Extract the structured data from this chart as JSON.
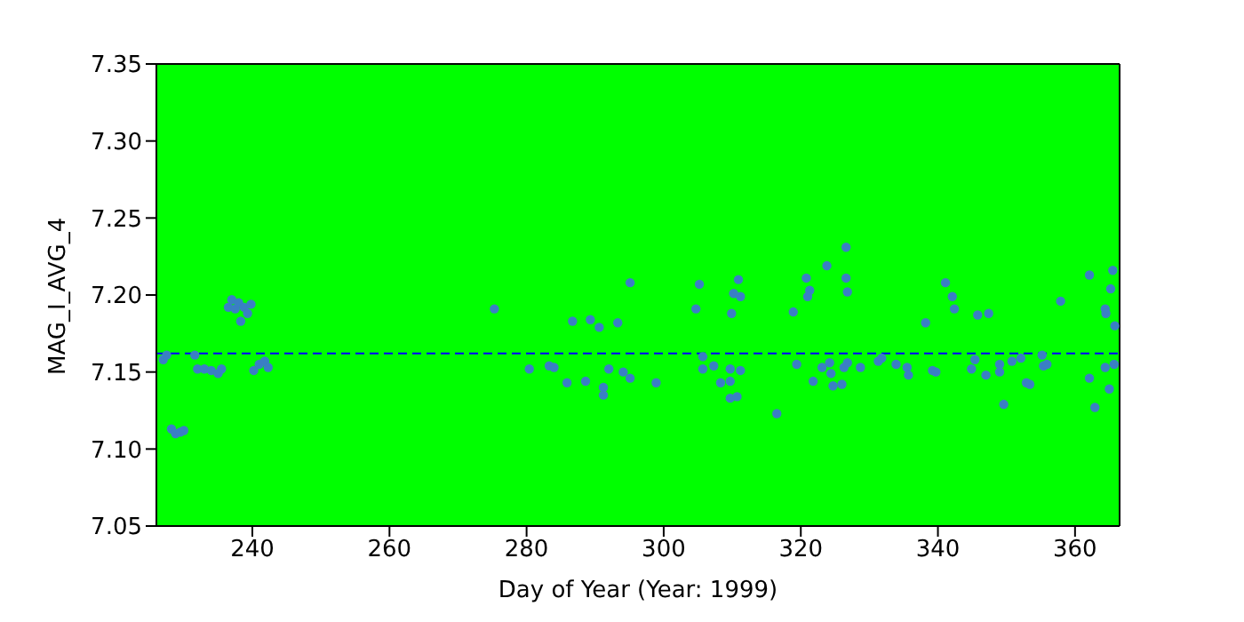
{
  "chart_data": {
    "type": "scatter",
    "xlabel": "Day of Year (Year: 1999)",
    "ylabel": "MAG_I_AVG_4",
    "xlim": [
      226,
      366.5
    ],
    "xticks": [
      240,
      260,
      280,
      300,
      320,
      340,
      360
    ],
    "ylim": [
      7.05,
      7.35
    ],
    "yticks": [
      7.05,
      {
        "value": 7.1,
        "label": "7.10"
      },
      7.15,
      {
        "value": 7.2,
        "label": "7.20"
      },
      7.25,
      {
        "value": 7.3,
        "label": "7.30"
      },
      7.35
    ],
    "legend": false,
    "marker": "circle",
    "ref_lines": [
      {
        "axis": "y",
        "value": 7.162,
        "color": "#0000ff",
        "line_style": "dashed"
      }
    ],
    "series": [
      {
        "color": "#3a7fc4",
        "x": [
          227,
          227.5,
          228.2,
          228.8,
          229.5,
          230,
          231.6,
          232,
          233,
          234,
          235,
          235.5,
          236.5,
          237,
          237.5,
          238,
          238.3,
          238.8,
          239.3,
          239.8,
          240.2,
          241,
          241.8,
          242.3,
          275.3,
          286.7,
          289.3,
          290.6,
          293.3,
          295.1,
          280.4,
          283.3,
          284,
          285.9,
          288.6,
          292,
          294.1,
          295.1,
          291.2,
          291.2,
          298.9,
          305.2,
          304.7,
          310.9,
          310.2,
          311.2,
          309.9,
          320.8,
          321.3,
          321,
          323.8,
          326.6,
          326.6,
          326.8,
          318.9,
          305.7,
          305.7,
          307.3,
          308.3,
          309.7,
          309.7,
          311.2,
          309.7,
          310.7,
          316.5,
          319.4,
          321.8,
          323.1,
          324.2,
          324.4,
          324.7,
          326,
          326.3,
          326.8,
          328.7,
          331.3,
          331.8,
          333.9,
          341.1,
          342.1,
          342.4,
          338.2,
          345.8,
          347.4,
          335.5,
          335.7,
          339.2,
          339.7,
          344.9,
          345.4,
          347,
          349,
          349,
          349.6,
          350.8,
          352.1,
          352.9,
          353.4,
          355.2,
          355.4,
          355.9,
          357.9,
          362.1,
          364.4,
          364.5,
          365.2,
          365.5,
          365.8,
          362.1,
          362.9,
          364.4,
          365,
          365.7
        ],
        "values": [
          7.158,
          7.161,
          7.113,
          7.11,
          7.111,
          7.112,
          7.161,
          7.152,
          7.152,
          7.151,
          7.149,
          7.152,
          7.192,
          7.197,
          7.191,
          7.195,
          7.183,
          7.192,
          7.188,
          7.194,
          7.151,
          7.155,
          7.157,
          7.153,
          7.191,
          7.183,
          7.184,
          7.179,
          7.182,
          7.208,
          7.152,
          7.154,
          7.153,
          7.143,
          7.144,
          7.152,
          7.15,
          7.146,
          7.14,
          7.135,
          7.143,
          7.207,
          7.191,
          7.21,
          7.201,
          7.199,
          7.188,
          7.211,
          7.203,
          7.199,
          7.219,
          7.231,
          7.211,
          7.202,
          7.189,
          7.16,
          7.152,
          7.154,
          7.143,
          7.144,
          7.152,
          7.151,
          7.133,
          7.134,
          7.123,
          7.155,
          7.144,
          7.153,
          7.156,
          7.149,
          7.141,
          7.142,
          7.153,
          7.156,
          7.153,
          7.157,
          7.159,
          7.155,
          7.208,
          7.199,
          7.191,
          7.182,
          7.187,
          7.188,
          7.153,
          7.148,
          7.151,
          7.15,
          7.152,
          7.158,
          7.148,
          7.155,
          7.15,
          7.129,
          7.157,
          7.159,
          7.143,
          7.142,
          7.161,
          7.154,
          7.155,
          7.196,
          7.213,
          7.191,
          7.188,
          7.204,
          7.216,
          7.18,
          7.146,
          7.127,
          7.153,
          7.139,
          7.155
        ]
      }
    ]
  }
}
